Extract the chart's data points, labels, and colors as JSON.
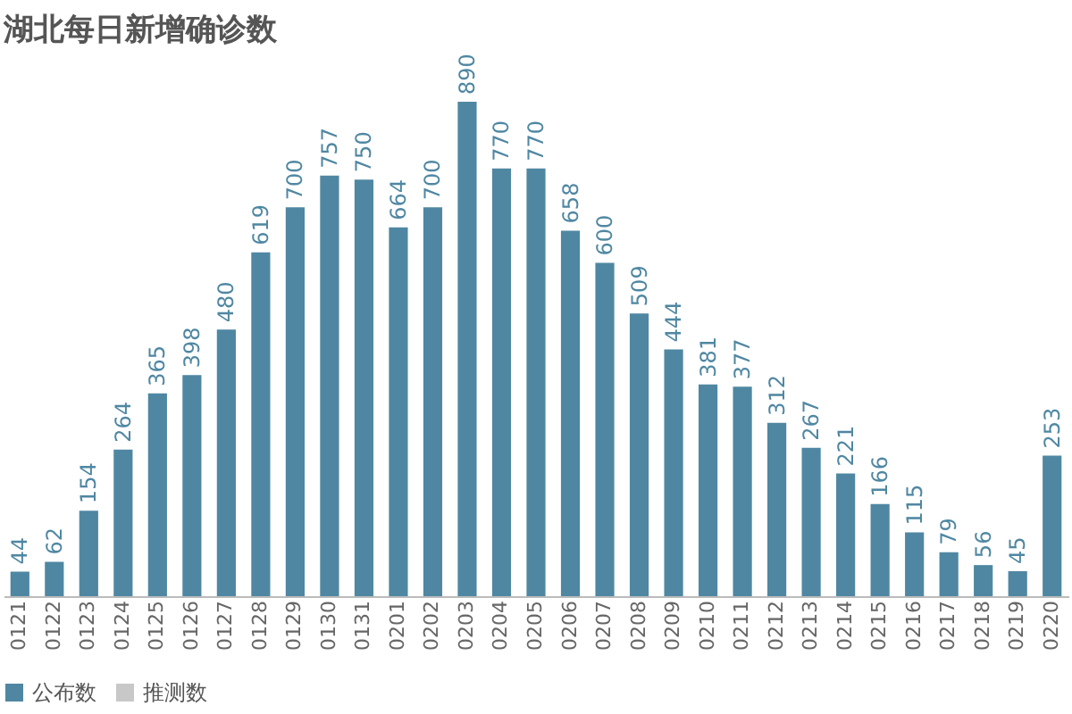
{
  "chart_data": {
    "type": "bar",
    "title": "湖北每日新增确诊数",
    "categories": [
      "0121",
      "0122",
      "0123",
      "0124",
      "0125",
      "0126",
      "0127",
      "0128",
      "0129",
      "0130",
      "0131",
      "0201",
      "0202",
      "0203",
      "0204",
      "0205",
      "0206",
      "0207",
      "0208",
      "0209",
      "0210",
      "0211",
      "0212",
      "0213",
      "0214",
      "0215",
      "0216",
      "0217",
      "0218",
      "0219",
      "0220"
    ],
    "series": [
      {
        "name": "公布数",
        "color": "#4f87a2",
        "values": [
          44,
          62,
          154,
          264,
          365,
          398,
          480,
          619,
          700,
          757,
          750,
          664,
          700,
          890,
          770,
          770,
          658,
          600,
          509,
          444,
          381,
          377,
          312,
          267,
          221,
          166,
          115,
          79,
          56,
          45,
          253
        ]
      },
      {
        "name": "推测数",
        "color": "#c8c8c8",
        "values": [
          null,
          null,
          null,
          null,
          null,
          null,
          null,
          null,
          null,
          null,
          null,
          null,
          null,
          null,
          null,
          null,
          null,
          null,
          null,
          null,
          null,
          null,
          null,
          null,
          null,
          null,
          null,
          null,
          null,
          null,
          null
        ]
      }
    ],
    "data_labels": true,
    "tick_labels": "x",
    "legend": "bottom",
    "grid": false
  }
}
